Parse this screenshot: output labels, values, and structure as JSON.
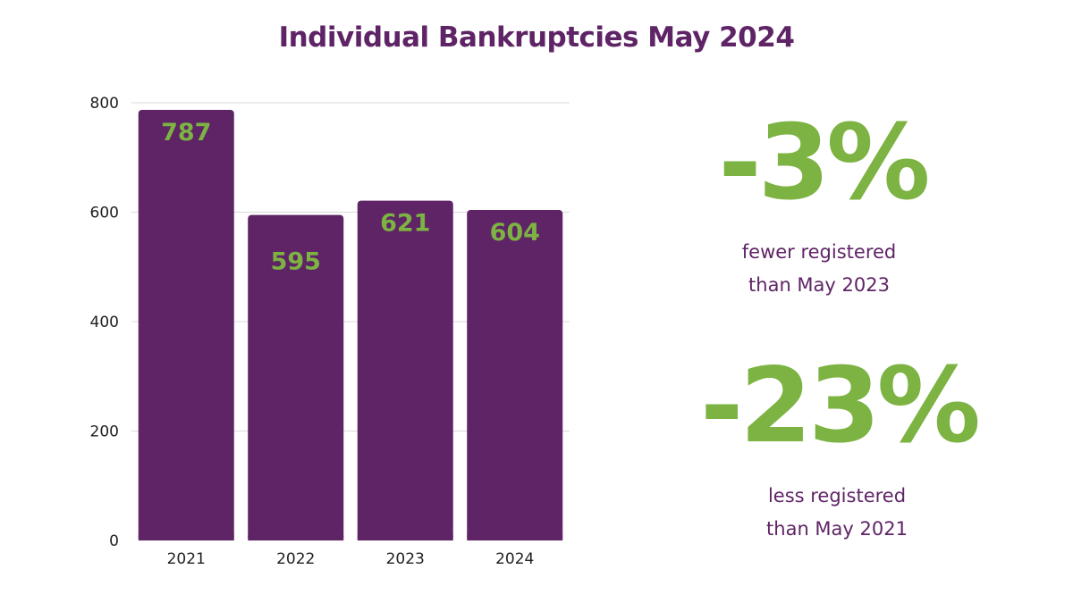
{
  "chart_data": {
    "type": "bar",
    "title": "Individual Bankruptcies May 2024",
    "categories": [
      "2021",
      "2022",
      "2023",
      "2024"
    ],
    "values": [
      787,
      595,
      621,
      604
    ],
    "data_labels": [
      "787",
      "595",
      "621",
      "604"
    ],
    "y_ticks": [
      "0",
      "200",
      "400",
      "600",
      "800"
    ],
    "ylim": [
      0,
      800
    ],
    "xlabel": "",
    "ylabel": "",
    "grid": true,
    "legend": "none",
    "colors": {
      "bar": "#5f2466",
      "label": "#7cb342",
      "grid": "#d9d9d9",
      "title": "#5f2466"
    }
  },
  "stats": [
    {
      "value": "-3%",
      "caption_line1": "fewer registered",
      "caption_line2": "than May 2023"
    },
    {
      "value": "-23%",
      "caption_line1": "less registered",
      "caption_line2": "than May 2021"
    }
  ]
}
